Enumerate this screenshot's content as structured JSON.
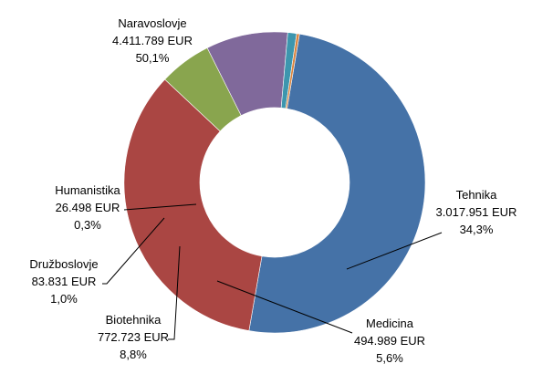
{
  "chart_data": {
    "type": "pie",
    "donut": true,
    "title": "",
    "slices": [
      {
        "name": "Naravoslovje",
        "amount": "4.411.789 EUR",
        "percent_label": "50,1%",
        "value": 4411789,
        "color": "#4572A7"
      },
      {
        "name": "Tehnika",
        "amount": "3.017.951 EUR",
        "percent_label": "34,3%",
        "value": 3017951,
        "color": "#AA4643"
      },
      {
        "name": "Medicina",
        "amount": "494.989 EUR",
        "percent_label": "5,6%",
        "value": 494989,
        "color": "#89A54E"
      },
      {
        "name": "Biotehnika",
        "amount": "772.723 EUR",
        "percent_label": "8,8%",
        "value": 772723,
        "color": "#80699B"
      },
      {
        "name": "Družboslovje",
        "amount": "83.831 EUR",
        "percent_label": "1,0%",
        "value": 83831,
        "color": "#3D96AE"
      },
      {
        "name": "Humanistika",
        "amount": "26.498 EUR",
        "percent_label": "0,3%",
        "value": 26498,
        "color": "#DB843D"
      }
    ]
  }
}
